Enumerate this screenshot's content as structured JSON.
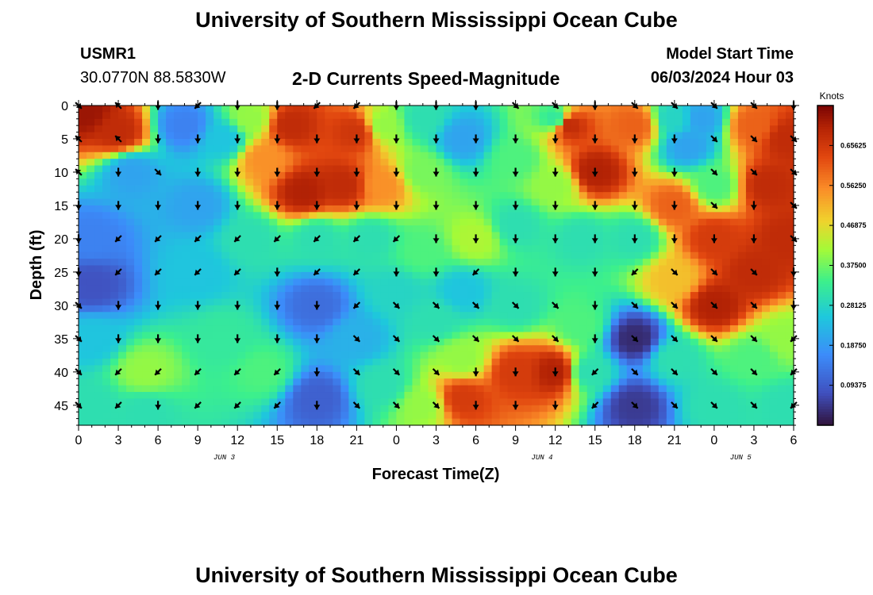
{
  "header": {
    "title": "University of Southern Mississippi Ocean Cube",
    "station": "USMR1",
    "coords": "30.0770N  88.5830W",
    "subtitle": "2-D Currents Speed-Magnitude",
    "model_label": "Model Start Time",
    "model_time": "06/03/2024 Hour 03"
  },
  "footer": {
    "title": "University of Southern Mississippi Ocean Cube"
  },
  "chart_data": {
    "type": "heatmap",
    "xlabel": "Forecast Time(Z)",
    "ylabel": "Depth (ft)",
    "x_tick_labels": [
      "0",
      "3",
      "6",
      "9",
      "12",
      "15",
      "18",
      "21",
      "0",
      "3",
      "6",
      "9",
      "12",
      "15",
      "18",
      "21",
      "0",
      "3",
      "6"
    ],
    "day_labels": [
      {
        "label": "JUN 3",
        "hour": 11
      },
      {
        "label": "JUN 4",
        "hour": 35
      },
      {
        "label": "JUN 5",
        "hour": 50
      }
    ],
    "xlim_hours": [
      0,
      54
    ],
    "ylim_depth_ft": [
      0,
      48
    ],
    "y_ticks": [
      0,
      5,
      10,
      15,
      20,
      25,
      30,
      35,
      40,
      45
    ],
    "colorbar": {
      "title": "Knots",
      "ticks": [
        "0.09375",
        "0.18750",
        "0.28125",
        "0.37500",
        "0.46875",
        "0.56250",
        "0.65625"
      ],
      "range": [
        0.0,
        0.75
      ]
    },
    "speed_anchors": [
      {
        "h": 0.5,
        "d": 1,
        "v": 0.72
      },
      {
        "h": 3,
        "d": 4,
        "v": 0.68
      },
      {
        "h": 4,
        "d": 10,
        "v": 0.2
      },
      {
        "h": 1,
        "d": 20,
        "v": 0.15
      },
      {
        "h": 1,
        "d": 27,
        "v": 0.08
      },
      {
        "h": 1,
        "d": 35,
        "v": 0.25
      },
      {
        "h": 1,
        "d": 45,
        "v": 0.3
      },
      {
        "h": 5,
        "d": 40,
        "v": 0.4
      },
      {
        "h": 5,
        "d": 46,
        "v": 0.3
      },
      {
        "h": 8,
        "d": 3,
        "v": 0.15
      },
      {
        "h": 9,
        "d": 15,
        "v": 0.2
      },
      {
        "h": 9,
        "d": 25,
        "v": 0.25
      },
      {
        "h": 11,
        "d": 5,
        "v": 0.25
      },
      {
        "h": 13,
        "d": 2,
        "v": 0.4
      },
      {
        "h": 14,
        "d": 8,
        "v": 0.55
      },
      {
        "h": 13,
        "d": 20,
        "v": 0.3
      },
      {
        "h": 11,
        "d": 35,
        "v": 0.32
      },
      {
        "h": 14,
        "d": 40,
        "v": 0.35
      },
      {
        "h": 16,
        "d": 3,
        "v": 0.68
      },
      {
        "h": 17,
        "d": 13,
        "v": 0.7
      },
      {
        "h": 20,
        "d": 12,
        "v": 0.68
      },
      {
        "h": 21,
        "d": 4,
        "v": 0.66
      },
      {
        "h": 18,
        "d": 20,
        "v": 0.3
      },
      {
        "h": 18,
        "d": 30,
        "v": 0.12
      },
      {
        "h": 18,
        "d": 44,
        "v": 0.1
      },
      {
        "h": 21,
        "d": 35,
        "v": 0.22
      },
      {
        "h": 23,
        "d": 3,
        "v": 0.4
      },
      {
        "h": 23,
        "d": 12,
        "v": 0.55
      },
      {
        "h": 22,
        "d": 20,
        "v": 0.3
      },
      {
        "h": 24,
        "d": 28,
        "v": 0.28
      },
      {
        "h": 23,
        "d": 42,
        "v": 0.3
      },
      {
        "h": 26,
        "d": 2,
        "v": 0.3
      },
      {
        "h": 26,
        "d": 10,
        "v": 0.38
      },
      {
        "h": 26,
        "d": 22,
        "v": 0.35
      },
      {
        "h": 27,
        "d": 32,
        "v": 0.3
      },
      {
        "h": 26,
        "d": 45,
        "v": 0.4
      },
      {
        "h": 29,
        "d": 5,
        "v": 0.2
      },
      {
        "h": 30,
        "d": 20,
        "v": 0.42
      },
      {
        "h": 29,
        "d": 28,
        "v": 0.25
      },
      {
        "h": 29,
        "d": 38,
        "v": 0.4
      },
      {
        "h": 29,
        "d": 44,
        "v": 0.65
      },
      {
        "h": 33,
        "d": 8,
        "v": 0.35
      },
      {
        "h": 33,
        "d": 18,
        "v": 0.3
      },
      {
        "h": 33,
        "d": 30,
        "v": 0.3
      },
      {
        "h": 33,
        "d": 40,
        "v": 0.65
      },
      {
        "h": 36,
        "d": 40,
        "v": 0.7
      },
      {
        "h": 36,
        "d": 2,
        "v": 0.32
      },
      {
        "h": 36,
        "d": 12,
        "v": 0.4
      },
      {
        "h": 37,
        "d": 3,
        "v": 0.68
      },
      {
        "h": 39,
        "d": 10,
        "v": 0.7
      },
      {
        "h": 38,
        "d": 20,
        "v": 0.3
      },
      {
        "h": 38,
        "d": 33,
        "v": 0.35
      },
      {
        "h": 38.5,
        "d": 40,
        "v": 0.3
      },
      {
        "h": 42,
        "d": 3,
        "v": 0.6
      },
      {
        "h": 42,
        "d": 20,
        "v": 0.3
      },
      {
        "h": 42,
        "d": 35,
        "v": 0.03
      },
      {
        "h": 42,
        "d": 45,
        "v": 0.05
      },
      {
        "h": 45,
        "d": 2,
        "v": 0.28
      },
      {
        "h": 46,
        "d": 6,
        "v": 0.2
      },
      {
        "h": 45,
        "d": 15,
        "v": 0.6
      },
      {
        "h": 45,
        "d": 26,
        "v": 0.5
      },
      {
        "h": 45,
        "d": 38,
        "v": 0.3
      },
      {
        "h": 47,
        "d": 2,
        "v": 0.2
      },
      {
        "h": 48,
        "d": 12,
        "v": 0.35
      },
      {
        "h": 48,
        "d": 20,
        "v": 0.65
      },
      {
        "h": 48,
        "d": 30,
        "v": 0.7
      },
      {
        "h": 48,
        "d": 45,
        "v": 0.3
      },
      {
        "h": 51,
        "d": 3,
        "v": 0.6
      },
      {
        "h": 52,
        "d": 12,
        "v": 0.68
      },
      {
        "h": 51,
        "d": 25,
        "v": 0.68
      },
      {
        "h": 51,
        "d": 38,
        "v": 0.35
      },
      {
        "h": 53.5,
        "d": 5,
        "v": 0.68
      },
      {
        "h": 53.5,
        "d": 20,
        "v": 0.68
      },
      {
        "h": 53.5,
        "d": 35,
        "v": 0.4
      },
      {
        "h": 53.5,
        "d": 45,
        "v": 0.3
      }
    ],
    "vector_grid": {
      "hours": [
        0,
        3,
        6,
        9,
        12,
        15,
        18,
        21,
        24,
        27,
        30,
        33,
        36,
        39,
        42,
        45,
        48,
        51,
        54
      ],
      "depths_ft": [
        0,
        5,
        10,
        15,
        20,
        25,
        30,
        35,
        40,
        45
      ],
      "direction_deg": [
        [
          135,
          315,
          180,
          225,
          180,
          180,
          225,
          225,
          180,
          180,
          180,
          135,
          135,
          180,
          135,
          135,
          135,
          135,
          180
        ],
        [
          315,
          315,
          180,
          180,
          180,
          180,
          180,
          180,
          180,
          180,
          180,
          180,
          180,
          180,
          180,
          180,
          135,
          135,
          135
        ],
        [
          315,
          180,
          135,
          180,
          180,
          180,
          180,
          180,
          180,
          180,
          180,
          180,
          180,
          180,
          180,
          180,
          135,
          135,
          135
        ],
        [
          180,
          180,
          180,
          180,
          180,
          180,
          180,
          180,
          180,
          180,
          180,
          180,
          180,
          180,
          180,
          180,
          135,
          180,
          135
        ],
        [
          180,
          225,
          225,
          225,
          225,
          225,
          225,
          225,
          225,
          180,
          180,
          180,
          180,
          180,
          180,
          180,
          180,
          180,
          135
        ],
        [
          180,
          225,
          225,
          225,
          225,
          180,
          225,
          225,
          180,
          180,
          225,
          180,
          180,
          180,
          225,
          135,
          135,
          135,
          180
        ],
        [
          135,
          180,
          180,
          180,
          180,
          180,
          180,
          225,
          135,
          135,
          135,
          135,
          135,
          180,
          135,
          135,
          135,
          135,
          180
        ],
        [
          135,
          180,
          180,
          180,
          180,
          180,
          180,
          135,
          135,
          135,
          135,
          135,
          135,
          180,
          135,
          135,
          135,
          135,
          225
        ],
        [
          135,
          225,
          225,
          225,
          225,
          225,
          180,
          135,
          135,
          135,
          180,
          180,
          180,
          225,
          135,
          135,
          135,
          135,
          225
        ],
        [
          135,
          225,
          180,
          225,
          225,
          225,
          180,
          135,
          135,
          135,
          180,
          180,
          180,
          225,
          135,
          135,
          135,
          135,
          225
        ]
      ]
    }
  }
}
